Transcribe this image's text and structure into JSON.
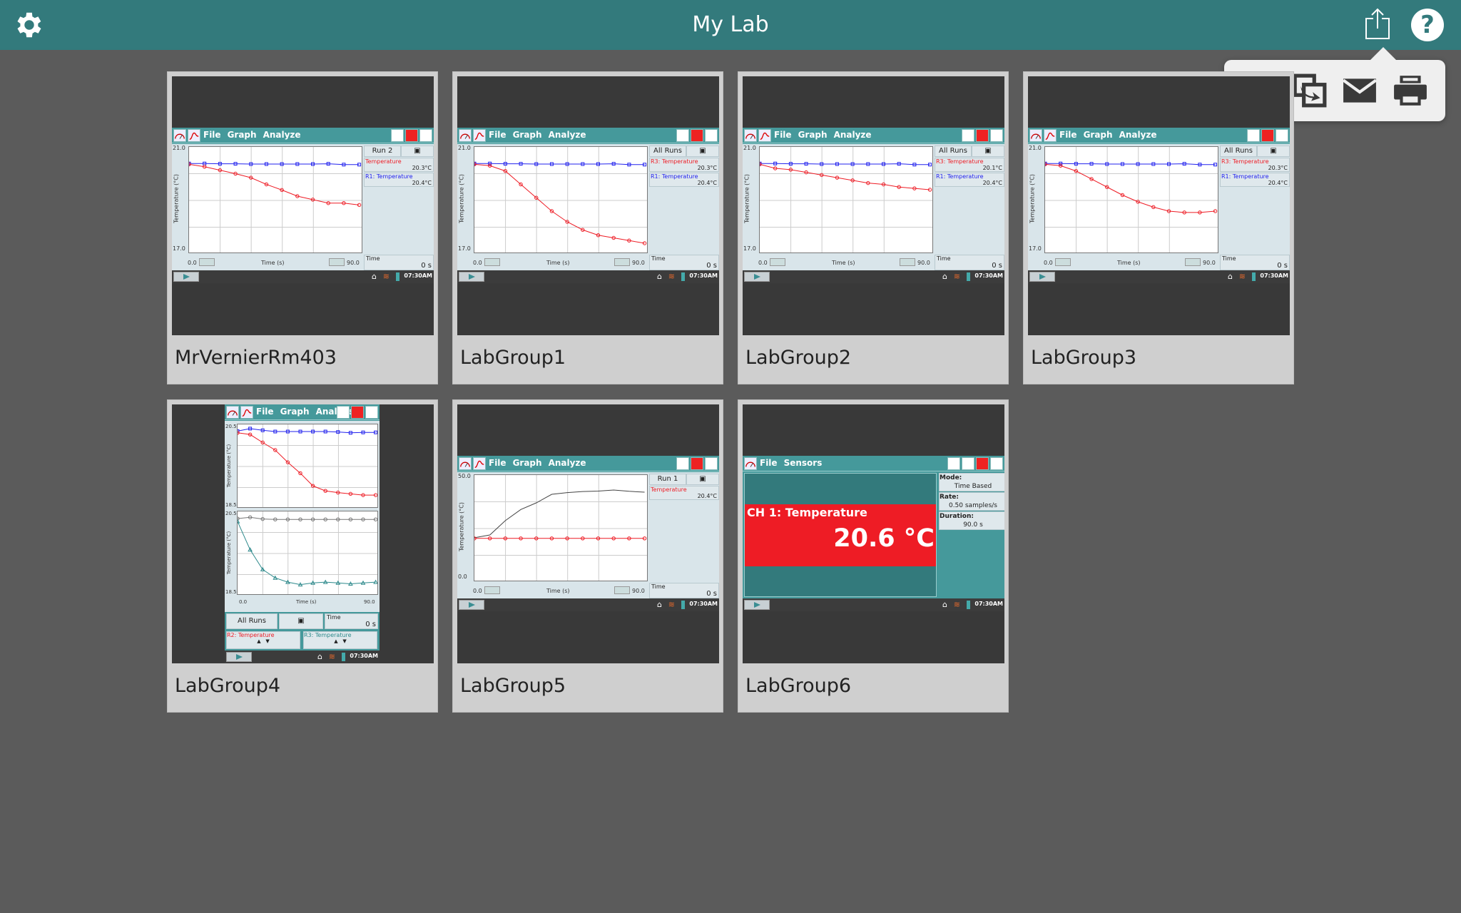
{
  "header": {
    "title": "My Lab",
    "settings_icon": "gear-icon",
    "share_icon": "share-icon",
    "help_icon": "help-icon",
    "help_glyph": "?"
  },
  "share_menu": {
    "items": [
      {
        "icon": "save-icon"
      },
      {
        "icon": "copy-export-icon"
      },
      {
        "icon": "email-icon"
      },
      {
        "icon": "print-icon"
      }
    ]
  },
  "colors": {
    "header": "#337a7c",
    "device_teal": "#45999b",
    "red": "#ee1c25",
    "blue": "#2222ee",
    "teal": "#2e8a8c"
  },
  "common": {
    "menu": [
      "File",
      "Graph",
      "Analyze"
    ],
    "x_label": "Time (s)",
    "y_label": "Temperature (°C)",
    "x_min": "0.0",
    "x_max": "90.0",
    "time_label": "Time",
    "time_value": "0 s",
    "clock": "07:30AM"
  },
  "tiles": [
    {
      "name": "MrVernierRm403",
      "type": "graph",
      "run": "Run 2",
      "y_min": "17.0",
      "y_max": "21.0",
      "ylim": [
        17,
        21
      ],
      "meters": [
        {
          "label": "Temperature",
          "value": "20.3°C",
          "color": "#ee1c25"
        },
        {
          "label": "R1: Temperature",
          "value": "20.4°C",
          "color": "#2222ee"
        }
      ],
      "series": [
        {
          "color": "#2222ee",
          "marker": "square",
          "y": [
            20.38,
            20.38,
            20.37,
            20.37,
            20.36,
            20.36,
            20.36,
            20.36,
            20.36,
            20.37,
            20.34,
            20.34
          ]
        },
        {
          "color": "#ee1c25",
          "marker": "circle",
          "y": [
            20.35,
            20.26,
            20.13,
            20.0,
            19.85,
            19.6,
            19.39,
            19.16,
            19.03,
            18.9,
            18.9,
            18.83
          ]
        }
      ]
    },
    {
      "name": "LabGroup1",
      "type": "graph",
      "run": "All Runs",
      "y_min": "17.0",
      "y_max": "21.0",
      "ylim": [
        17,
        21
      ],
      "meters": [
        {
          "label": "R3: Temperature",
          "value": "20.3°C",
          "color": "#ee1c25"
        },
        {
          "label": "R1: Temperature",
          "value": "20.4°C",
          "color": "#2222ee"
        }
      ],
      "series": [
        {
          "color": "#2222ee",
          "marker": "square",
          "y": [
            20.38,
            20.38,
            20.37,
            20.37,
            20.36,
            20.36,
            20.36,
            20.36,
            20.36,
            20.37,
            20.34,
            20.34
          ]
        },
        {
          "color": "#ee1c25",
          "marker": "circle",
          "y": [
            20.35,
            20.3,
            20.1,
            19.6,
            19.1,
            18.6,
            18.2,
            17.9,
            17.7,
            17.6,
            17.5,
            17.4
          ]
        }
      ]
    },
    {
      "name": "LabGroup2",
      "type": "graph",
      "run": "All Runs",
      "y_min": "17.0",
      "y_max": "21.0",
      "ylim": [
        17,
        21
      ],
      "meters": [
        {
          "label": "R3: Temperature",
          "value": "20.1°C",
          "color": "#ee1c25"
        },
        {
          "label": "R1: Temperature",
          "value": "20.4°C",
          "color": "#2222ee"
        }
      ],
      "series": [
        {
          "color": "#2222ee",
          "marker": "square",
          "y": [
            20.38,
            20.38,
            20.37,
            20.37,
            20.36,
            20.36,
            20.36,
            20.36,
            20.36,
            20.37,
            20.34,
            20.34
          ]
        },
        {
          "color": "#ee1c25",
          "marker": "circle",
          "y": [
            20.35,
            20.2,
            20.15,
            20.05,
            19.95,
            19.85,
            19.75,
            19.65,
            19.6,
            19.5,
            19.45,
            19.4
          ]
        }
      ]
    },
    {
      "name": "LabGroup3",
      "type": "graph",
      "run": "All Runs",
      "y_min": "17.0",
      "y_max": "21.0",
      "ylim": [
        17,
        21
      ],
      "meters": [
        {
          "label": "R3: Temperature",
          "value": "20.3°C",
          "color": "#ee1c25"
        },
        {
          "label": "R1: Temperature",
          "value": "20.4°C",
          "color": "#2222ee"
        }
      ],
      "series": [
        {
          "color": "#2222ee",
          "marker": "square",
          "y": [
            20.38,
            20.38,
            20.37,
            20.37,
            20.36,
            20.36,
            20.36,
            20.36,
            20.36,
            20.37,
            20.34,
            20.34
          ]
        },
        {
          "color": "#ee1c25",
          "marker": "circle",
          "y": [
            20.35,
            20.3,
            20.1,
            19.8,
            19.5,
            19.2,
            18.95,
            18.75,
            18.6,
            18.55,
            18.55,
            18.6
          ]
        }
      ]
    },
    {
      "name": "LabGroup4",
      "type": "dual",
      "run": "All Runs",
      "y_min": "18.5",
      "y_max": "20.5",
      "ylim": [
        18.5,
        20.5
      ],
      "meters": [
        {
          "label": "R2: Temperature",
          "color": "#ee1c25"
        },
        {
          "label": "R3: Temperature",
          "color": "#2e8a8c"
        }
      ],
      "series": [
        {
          "color": "#2222ee",
          "marker": "square",
          "y": [
            20.34,
            20.4,
            20.36,
            20.33,
            20.33,
            20.33,
            20.33,
            20.33,
            20.32,
            20.3,
            20.31,
            20.31
          ]
        },
        {
          "color": "#ee1c25",
          "marker": "circle",
          "y": [
            20.3,
            20.26,
            20.07,
            19.89,
            19.6,
            19.34,
            19.04,
            18.92,
            18.88,
            18.85,
            18.82,
            18.82
          ]
        }
      ],
      "series2": [
        {
          "color": "#777777",
          "marker": "circle",
          "y": [
            20.33,
            20.36,
            20.32,
            20.31,
            20.31,
            20.31,
            20.31,
            20.31,
            20.31,
            20.31,
            20.31,
            20.31
          ]
        },
        {
          "color": "#2e8a8c",
          "marker": "triangle",
          "y": [
            20.26,
            19.59,
            19.12,
            18.92,
            18.82,
            18.76,
            18.8,
            18.82,
            18.8,
            18.78,
            18.8,
            18.82
          ]
        }
      ]
    },
    {
      "name": "LabGroup5",
      "type": "graph",
      "run": "Run 1",
      "y_min": "0.0",
      "y_max": "50.0",
      "ylim": [
        0,
        50
      ],
      "meters": [
        {
          "label": "Temperature",
          "value": "20.4°C",
          "color": "#ee1c25"
        }
      ],
      "series": [
        {
          "color": "#444444",
          "marker": "none",
          "y": [
            20.7,
            22,
            28.7,
            33.9,
            37,
            41,
            41.8,
            42.3,
            42.5,
            43,
            42.4,
            42
          ]
        },
        {
          "color": "#ee1c25",
          "marker": "circle",
          "y": [
            20.4,
            20.4,
            20.4,
            20.4,
            20.4,
            20.4,
            20.4,
            20.4,
            20.4,
            20.4,
            20.4,
            20.4
          ]
        }
      ]
    },
    {
      "name": "LabGroup6",
      "type": "sensors",
      "menu": [
        "File",
        "Sensors"
      ],
      "channel": "CH 1: Temperature",
      "reading": "20.6 °C",
      "info": [
        {
          "label": "Mode:",
          "value": "Time Based"
        },
        {
          "label": "Rate:",
          "value": "0.50 samples/s"
        },
        {
          "label": "Duration:",
          "value": "90.0 s"
        }
      ]
    }
  ]
}
